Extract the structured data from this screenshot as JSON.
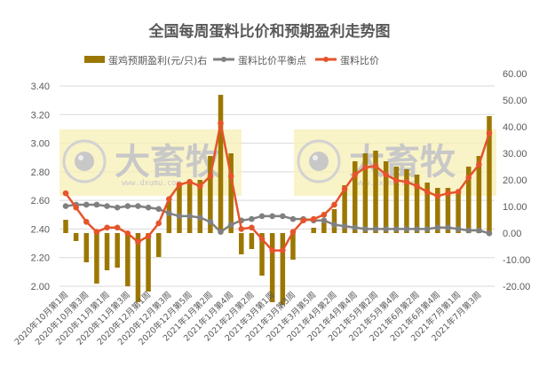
{
  "chart_data": {
    "type": "bar+line",
    "title": "全国每周蛋料比价和预期盈利走势图",
    "legend_position": "top",
    "grid": true,
    "watermark": {
      "brand": "大畜牧",
      "url": "www.dxumu.com"
    },
    "left_axis": {
      "label": "",
      "ylim": [
        2.0,
        3.4
      ],
      "ticks": [
        "3.40",
        "3.20",
        "3.00",
        "2.80",
        "2.60",
        "2.40",
        "2.20",
        "2.00"
      ]
    },
    "right_axis": {
      "label": "",
      "ylim": [
        -20,
        60
      ],
      "ticks": [
        "60.00",
        "50.00",
        "40.00",
        "30.00",
        "20.00",
        "10.00",
        "0.00",
        "-10.00",
        "-20.00"
      ]
    },
    "x_tick_labels": [
      "2020年10月第1周",
      "2020年10月第3周",
      "2020年11月第1周",
      "2020年11月第3周",
      "2020年12月第1周",
      "2020年12月第3周",
      "2020年12月第5周",
      "2021年1月第2周",
      "2021年1月第4周",
      "2021年2月第2周",
      "2021年3月第1周",
      "2021年3月第3周",
      "2021年3月第5周",
      "2021年4月第2周",
      "2021年4月第4周",
      "2021年5月第2周",
      "2021年5月第4周",
      "2021年6月第2周",
      "2021年6月第4周",
      "2021年7月第1周",
      "2021年7月第3周"
    ],
    "point_count": 42,
    "series": [
      {
        "name": "蛋鸡预期盈利(元/只)右",
        "type": "bar",
        "axis": "right",
        "color": "#9C7700",
        "values": [
          5,
          -3,
          -11,
          -19,
          -14,
          -13,
          -20,
          -26,
          -22,
          -9,
          12,
          19,
          20,
          20,
          29,
          52,
          30,
          -8,
          -6,
          -16,
          -26,
          -27,
          -10,
          0,
          2,
          4,
          9,
          18,
          27,
          30,
          31,
          27,
          25,
          24,
          22,
          19,
          17,
          17,
          16,
          25,
          29,
          44
        ]
      },
      {
        "name": "蛋料比价平衡点",
        "type": "line",
        "axis": "left",
        "color": "#808080",
        "values": [
          2.56,
          2.57,
          2.57,
          2.57,
          2.56,
          2.55,
          2.56,
          2.56,
          2.55,
          2.54,
          2.51,
          2.49,
          2.49,
          2.48,
          2.45,
          2.38,
          2.43,
          2.46,
          2.47,
          2.49,
          2.49,
          2.49,
          2.47,
          2.47,
          2.46,
          2.46,
          2.43,
          2.42,
          2.41,
          2.4,
          2.4,
          2.4,
          2.4,
          2.4,
          2.4,
          2.4,
          2.41,
          2.41,
          2.4,
          2.39,
          2.39,
          2.37
        ]
      },
      {
        "name": "蛋料比价",
        "type": "line",
        "axis": "left",
        "color": "#E5542B",
        "values": [
          2.65,
          2.55,
          2.45,
          2.38,
          2.41,
          2.41,
          2.37,
          2.31,
          2.35,
          2.44,
          2.61,
          2.71,
          2.73,
          2.7,
          2.77,
          3.14,
          2.77,
          2.4,
          2.41,
          2.33,
          2.25,
          2.25,
          2.38,
          2.46,
          2.47,
          2.5,
          2.57,
          2.68,
          2.78,
          2.83,
          2.84,
          2.78,
          2.74,
          2.73,
          2.7,
          2.66,
          2.63,
          2.65,
          2.66,
          2.76,
          2.85,
          3.07
        ]
      }
    ]
  }
}
